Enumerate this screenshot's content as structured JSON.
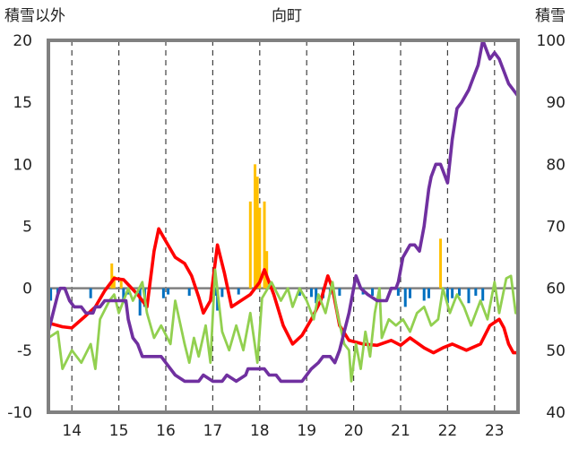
{
  "chart_data": {
    "type": "line",
    "title": "向町",
    "y_left_label": "積雪以外",
    "y_right_label": "積雪",
    "y_left_range": [
      -10,
      20
    ],
    "y_left_ticks": [
      "20",
      "15",
      "10",
      "5",
      "0",
      "-5",
      "-10"
    ],
    "y_right_range": [
      40,
      100
    ],
    "y_right_ticks": [
      "100",
      "90",
      "80",
      "70",
      "60",
      "50",
      "40"
    ],
    "x_range": [
      13.5,
      23.5
    ],
    "x_ticks": [
      "14",
      "15",
      "16",
      "17",
      "18",
      "19",
      "20",
      "21",
      "22",
      "23"
    ],
    "grid": "vertical dashed at each day",
    "colors": {
      "temperature": "#ff0000",
      "humidity": "#92d050",
      "snow_depth": "#7030a0",
      "snowfall": "#ffc000",
      "precip_negative": "#0070c0",
      "frame": "#808080"
    },
    "series": [
      {
        "key": "temperature",
        "axis": "left",
        "points": [
          [
            13.5,
            -2.8
          ],
          [
            13.8,
            -3.1
          ],
          [
            14.0,
            -3.2
          ],
          [
            14.3,
            -2.2
          ],
          [
            14.5,
            -1.5
          ],
          [
            14.7,
            -0.2
          ],
          [
            14.9,
            0.8
          ],
          [
            15.1,
            0.7
          ],
          [
            15.4,
            -0.5
          ],
          [
            15.6,
            -1.5
          ],
          [
            15.75,
            3.0
          ],
          [
            15.85,
            4.8
          ],
          [
            16.0,
            3.8
          ],
          [
            16.2,
            2.5
          ],
          [
            16.4,
            2.0
          ],
          [
            16.55,
            1.0
          ],
          [
            16.7,
            -0.7
          ],
          [
            16.8,
            -2.0
          ],
          [
            16.95,
            -1.0
          ],
          [
            17.1,
            3.5
          ],
          [
            17.25,
            1.2
          ],
          [
            17.4,
            -1.5
          ],
          [
            17.6,
            -1.0
          ],
          [
            17.8,
            -0.5
          ],
          [
            18.0,
            0.5
          ],
          [
            18.1,
            1.5
          ],
          [
            18.3,
            -0.5
          ],
          [
            18.5,
            -3.0
          ],
          [
            18.7,
            -4.5
          ],
          [
            18.9,
            -3.8
          ],
          [
            19.1,
            -2.5
          ],
          [
            19.3,
            -1.0
          ],
          [
            19.45,
            1.0
          ],
          [
            19.55,
            0.0
          ],
          [
            19.7,
            -3.0
          ],
          [
            19.9,
            -4.2
          ],
          [
            20.2,
            -4.5
          ],
          [
            20.5,
            -4.6
          ],
          [
            20.8,
            -4.2
          ],
          [
            21.0,
            -4.6
          ],
          [
            21.2,
            -4.0
          ],
          [
            21.5,
            -4.8
          ],
          [
            21.7,
            -5.2
          ],
          [
            21.9,
            -4.8
          ],
          [
            22.1,
            -4.5
          ],
          [
            22.4,
            -5.0
          ],
          [
            22.7,
            -4.5
          ],
          [
            22.9,
            -3.0
          ],
          [
            23.1,
            -2.5
          ],
          [
            23.2,
            -3.2
          ],
          [
            23.3,
            -4.5
          ],
          [
            23.4,
            -5.2
          ],
          [
            23.5,
            -5.2
          ]
        ]
      },
      {
        "key": "humidity",
        "axis": "left",
        "points": [
          [
            13.5,
            -4.0
          ],
          [
            13.7,
            -3.5
          ],
          [
            13.8,
            -6.5
          ],
          [
            14.0,
            -5.0
          ],
          [
            14.2,
            -6.0
          ],
          [
            14.4,
            -4.5
          ],
          [
            14.5,
            -6.5
          ],
          [
            14.6,
            -2.5
          ],
          [
            14.8,
            -1.0
          ],
          [
            14.9,
            -0.5
          ],
          [
            15.0,
            -2.0
          ],
          [
            15.2,
            0.0
          ],
          [
            15.3,
            -1.0
          ],
          [
            15.5,
            0.5
          ],
          [
            15.6,
            -2.0
          ],
          [
            15.75,
            -4.0
          ],
          [
            15.9,
            -3.0
          ],
          [
            16.1,
            -4.5
          ],
          [
            16.2,
            -1.0
          ],
          [
            16.4,
            -4.5
          ],
          [
            16.5,
            -6.0
          ],
          [
            16.6,
            -4.0
          ],
          [
            16.7,
            -5.5
          ],
          [
            16.85,
            -3.0
          ],
          [
            16.95,
            -6.0
          ],
          [
            17.05,
            1.5
          ],
          [
            17.2,
            -3.5
          ],
          [
            17.35,
            -5.0
          ],
          [
            17.5,
            -3.0
          ],
          [
            17.65,
            -5.0
          ],
          [
            17.8,
            -2.0
          ],
          [
            17.95,
            -6.0
          ],
          [
            18.05,
            -0.8
          ],
          [
            18.25,
            0.5
          ],
          [
            18.45,
            -1.0
          ],
          [
            18.6,
            0.0
          ],
          [
            18.7,
            -1.5
          ],
          [
            18.85,
            0.0
          ],
          [
            19.0,
            -1.0
          ],
          [
            19.15,
            -2.5
          ],
          [
            19.25,
            -0.5
          ],
          [
            19.4,
            -2.0
          ],
          [
            19.55,
            0.5
          ],
          [
            19.65,
            -2.0
          ],
          [
            19.8,
            -4.5
          ],
          [
            19.9,
            -5.0
          ],
          [
            19.95,
            -7.5
          ],
          [
            20.05,
            -4.5
          ],
          [
            20.15,
            -6.5
          ],
          [
            20.25,
            -3.5
          ],
          [
            20.35,
            -5.5
          ],
          [
            20.45,
            -2.0
          ],
          [
            20.55,
            0.0
          ],
          [
            20.6,
            -4.0
          ],
          [
            20.75,
            -2.5
          ],
          [
            20.9,
            -3.0
          ],
          [
            21.05,
            -2.5
          ],
          [
            21.2,
            -3.5
          ],
          [
            21.35,
            -2.0
          ],
          [
            21.5,
            -1.5
          ],
          [
            21.65,
            -3.0
          ],
          [
            21.8,
            -2.5
          ],
          [
            21.9,
            0.0
          ],
          [
            22.05,
            -2.0
          ],
          [
            22.2,
            -0.5
          ],
          [
            22.35,
            -1.5
          ],
          [
            22.5,
            -3.0
          ],
          [
            22.7,
            -1.0
          ],
          [
            22.85,
            -2.5
          ],
          [
            23.0,
            0.5
          ],
          [
            23.1,
            -2.0
          ],
          [
            23.25,
            0.8
          ],
          [
            23.35,
            1.0
          ],
          [
            23.45,
            -2.0
          ],
          [
            23.5,
            -1.8
          ]
        ]
      },
      {
        "key": "snow_depth",
        "axis": "right",
        "points": [
          [
            13.5,
            53
          ],
          [
            13.6,
            56
          ],
          [
            13.7,
            59
          ],
          [
            13.75,
            60
          ],
          [
            13.85,
            60
          ],
          [
            13.95,
            58
          ],
          [
            14.05,
            57
          ],
          [
            14.2,
            57
          ],
          [
            14.3,
            56
          ],
          [
            14.45,
            56
          ],
          [
            14.5,
            57
          ],
          [
            14.6,
            57
          ],
          [
            14.7,
            58
          ],
          [
            14.85,
            58
          ],
          [
            15.15,
            58
          ],
          [
            15.2,
            55
          ],
          [
            15.3,
            52
          ],
          [
            15.4,
            51
          ],
          [
            15.5,
            49
          ],
          [
            15.9,
            49
          ],
          [
            16.0,
            48
          ],
          [
            16.2,
            46
          ],
          [
            16.4,
            45
          ],
          [
            16.7,
            45
          ],
          [
            16.8,
            46
          ],
          [
            17.0,
            45
          ],
          [
            17.2,
            45
          ],
          [
            17.3,
            46
          ],
          [
            17.5,
            45
          ],
          [
            17.7,
            46
          ],
          [
            17.75,
            47
          ],
          [
            18.1,
            47
          ],
          [
            18.2,
            46
          ],
          [
            18.35,
            46
          ],
          [
            18.45,
            45
          ],
          [
            18.9,
            45
          ],
          [
            19.0,
            46
          ],
          [
            19.1,
            47
          ],
          [
            19.25,
            48
          ],
          [
            19.35,
            49
          ],
          [
            19.5,
            49
          ],
          [
            19.6,
            48
          ],
          [
            19.7,
            50
          ],
          [
            19.8,
            53
          ],
          [
            19.9,
            56
          ],
          [
            20.05,
            62
          ],
          [
            20.15,
            60
          ],
          [
            20.3,
            59
          ],
          [
            20.5,
            58
          ],
          [
            20.7,
            58
          ],
          [
            20.8,
            60
          ],
          [
            20.9,
            60
          ],
          [
            20.95,
            61
          ],
          [
            21.05,
            65
          ],
          [
            21.2,
            67
          ],
          [
            21.3,
            67
          ],
          [
            21.4,
            66
          ],
          [
            21.5,
            70
          ],
          [
            21.6,
            76
          ],
          [
            21.65,
            78
          ],
          [
            21.75,
            80
          ],
          [
            21.85,
            80
          ],
          [
            21.9,
            79
          ],
          [
            22.0,
            77
          ],
          [
            22.1,
            84
          ],
          [
            22.2,
            89
          ],
          [
            22.3,
            90
          ],
          [
            22.45,
            92
          ],
          [
            22.55,
            94
          ],
          [
            22.65,
            96
          ],
          [
            22.75,
            100
          ],
          [
            22.8,
            99
          ],
          [
            22.9,
            97
          ],
          [
            23.0,
            98
          ],
          [
            23.1,
            97
          ],
          [
            23.2,
            95
          ],
          [
            23.3,
            93
          ],
          [
            23.4,
            92
          ],
          [
            23.5,
            91
          ]
        ]
      },
      {
        "key": "snowfall",
        "axis": "left",
        "type": "bar",
        "points": [
          [
            14.85,
            2.0
          ],
          [
            14.9,
            1.0
          ],
          [
            15.05,
            0.8
          ],
          [
            17.8,
            7.0
          ],
          [
            17.9,
            10.0
          ],
          [
            17.95,
            9.0
          ],
          [
            18.0,
            6.5
          ],
          [
            18.1,
            7.0
          ],
          [
            18.15,
            3.0
          ],
          [
            21.85,
            4.0
          ]
        ]
      },
      {
        "key": "precip_negative",
        "axis": "left",
        "type": "bar",
        "points": [
          [
            13.55,
            -1.0
          ],
          [
            13.7,
            -0.5
          ],
          [
            14.4,
            -0.8
          ],
          [
            15.1,
            -1.2
          ],
          [
            15.2,
            -0.5
          ],
          [
            15.45,
            -2.2
          ],
          [
            15.55,
            -1.5
          ],
          [
            15.95,
            -0.8
          ],
          [
            16.05,
            -0.5
          ],
          [
            16.5,
            -0.6
          ],
          [
            17.05,
            -0.6
          ],
          [
            17.1,
            -1.8
          ],
          [
            17.2,
            -0.7
          ],
          [
            17.55,
            -0.5
          ],
          [
            18.85,
            -0.6
          ],
          [
            19.1,
            -0.7
          ],
          [
            19.2,
            -1.2
          ],
          [
            19.35,
            -0.8
          ],
          [
            19.5,
            -0.5
          ],
          [
            19.7,
            -0.6
          ],
          [
            20.2,
            -0.5
          ],
          [
            20.4,
            -0.6
          ],
          [
            20.95,
            -0.6
          ],
          [
            21.1,
            -1.5
          ],
          [
            21.2,
            -0.8
          ],
          [
            21.5,
            -1.0
          ],
          [
            21.6,
            -0.8
          ],
          [
            22.0,
            -1.2
          ],
          [
            22.1,
            -0.8
          ],
          [
            22.25,
            -0.6
          ],
          [
            22.45,
            -1.2
          ],
          [
            22.6,
            -0.6
          ],
          [
            22.75,
            -1.0
          ]
        ]
      }
    ]
  }
}
